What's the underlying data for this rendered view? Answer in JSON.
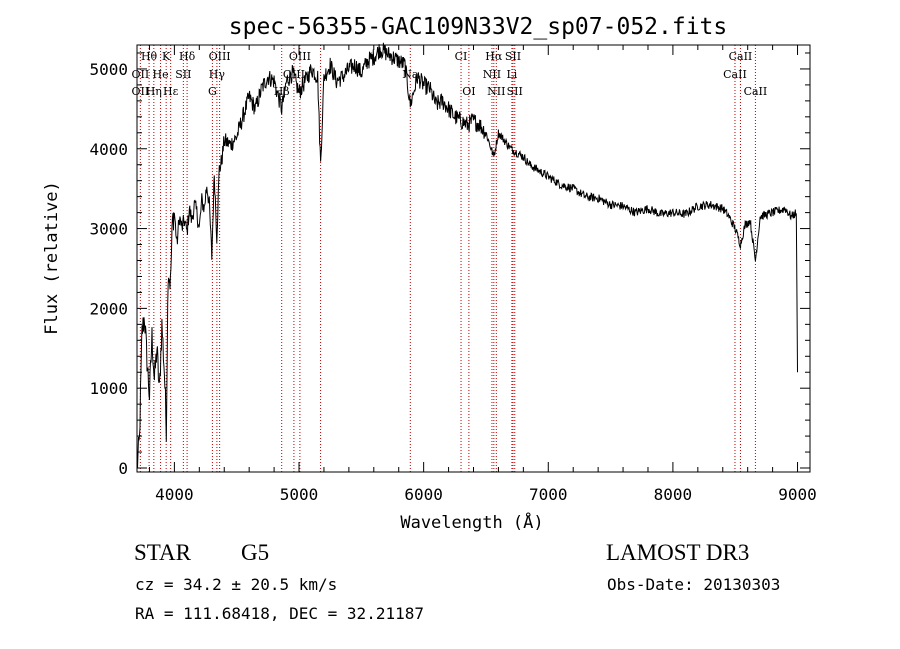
{
  "chart_data": {
    "type": "line",
    "title": "spec-56355-GAC109N33V2_sp07-052.fits",
    "xlabel": "Wavelength (Å)",
    "ylabel": "Flux (relative)",
    "xlim": [
      3700,
      9100
    ],
    "ylim": [
      -50,
      5300
    ],
    "x_ticks": [
      4000,
      5000,
      6000,
      7000,
      8000,
      9000
    ],
    "y_ticks": [
      0,
      1000,
      2000,
      3000,
      4000,
      5000
    ],
    "series": [
      {
        "name": "flux",
        "x": [
          3700,
          3720,
          3740,
          3760,
          3780,
          3800,
          3820,
          3840,
          3860,
          3880,
          3900,
          3920,
          3935,
          3950,
          3968,
          3985,
          4000,
          4020,
          4040,
          4060,
          4080,
          4101,
          4120,
          4140,
          4160,
          4180,
          4200,
          4220,
          4240,
          4260,
          4280,
          4300,
          4320,
          4340,
          4360,
          4380,
          4400,
          4450,
          4500,
          4550,
          4600,
          4650,
          4700,
          4750,
          4800,
          4861,
          4900,
          4950,
          5000,
          5050,
          5100,
          5150,
          5173,
          5200,
          5250,
          5300,
          5350,
          5400,
          5450,
          5500,
          5550,
          5600,
          5650,
          5700,
          5750,
          5800,
          5850,
          5893,
          5950,
          6000,
          6050,
          6100,
          6150,
          6200,
          6250,
          6300,
          6350,
          6400,
          6450,
          6500,
          6563,
          6600,
          6650,
          6700,
          6750,
          6800,
          6850,
          6900,
          6950,
          7000,
          7100,
          7200,
          7300,
          7400,
          7500,
          7600,
          7700,
          7800,
          7900,
          8000,
          8100,
          8200,
          8300,
          8400,
          8450,
          8500,
          8542,
          8580,
          8620,
          8662,
          8700,
          8800,
          8900,
          8950,
          8990,
          9000
        ],
        "values": [
          0,
          350,
          1700,
          1900,
          1350,
          900,
          1650,
          1100,
          1500,
          950,
          1800,
          1200,
          500,
          2500,
          2300,
          3100,
          3200,
          2800,
          3150,
          3000,
          3100,
          2950,
          3250,
          3100,
          3300,
          3200,
          3000,
          3350,
          3250,
          3550,
          3300,
          2650,
          3700,
          2900,
          3750,
          3850,
          4100,
          4050,
          4150,
          4400,
          4650,
          4500,
          4750,
          4900,
          4850,
          4500,
          4850,
          4950,
          4700,
          4850,
          5000,
          4900,
          3800,
          4900,
          5050,
          4850,
          4900,
          5000,
          5050,
          4950,
          5100,
          5150,
          5250,
          5200,
          5150,
          5100,
          5050,
          4550,
          4900,
          4800,
          4750,
          4550,
          4600,
          4500,
          4400,
          4350,
          4300,
          4350,
          4300,
          4200,
          3900,
          4200,
          4100,
          4000,
          3950,
          3900,
          3800,
          3750,
          3700,
          3650,
          3550,
          3500,
          3400,
          3380,
          3300,
          3280,
          3200,
          3250,
          3180,
          3200,
          3180,
          3280,
          3300,
          3250,
          3150,
          3000,
          2800,
          3050,
          3100,
          2600,
          3150,
          3200,
          3250,
          3150,
          3200,
          1200
        ]
      }
    ],
    "lines": [
      {
        "label": "Hθ",
        "wavelength": 3797,
        "row": 0
      },
      {
        "label": "K",
        "wavelength": 3934,
        "row": 0
      },
      {
        "label": "Hδ",
        "wavelength": 4102,
        "row": 0
      },
      {
        "label": "OIII",
        "wavelength": 4363,
        "row": 0
      },
      {
        "label": "OIII",
        "wavelength": 5007,
        "row": 0
      },
      {
        "label": "CI",
        "wavelength": 6300,
        "row": 0
      },
      {
        "label": "Hα",
        "wavelength": 6563,
        "row": 0
      },
      {
        "label": "SII",
        "wavelength": 6717,
        "row": 0
      },
      {
        "label": "CaII",
        "wavelength": 8542,
        "row": 0
      },
      {
        "label": "OII",
        "wavelength": 3727,
        "row": 1
      },
      {
        "label": "He",
        "wavelength": 3889,
        "row": 1
      },
      {
        "label": "SII",
        "wavelength": 4072,
        "row": 1
      },
      {
        "label": "Hγ",
        "wavelength": 4341,
        "row": 1
      },
      {
        "label": "OIII",
        "wavelength": 4959,
        "row": 1
      },
      {
        "label": "Na",
        "wavelength": 5893,
        "row": 1
      },
      {
        "label": "NII",
        "wavelength": 6548,
        "row": 1
      },
      {
        "label": "Li",
        "wavelength": 6708,
        "row": 1
      },
      {
        "label": "CaII",
        "wavelength": 8498,
        "row": 1
      },
      {
        "label": "OII",
        "wavelength": 3727,
        "row": 2
      },
      {
        "label": "Hε",
        "wavelength": 3970,
        "row": 2
      },
      {
        "label": "Hη",
        "wavelength": 3835,
        "row": 2
      },
      {
        "label": "G",
        "wavelength": 4305,
        "row": 2
      },
      {
        "label": "Hβ",
        "wavelength": 4861,
        "row": 2
      },
      {
        "label": "OI",
        "wavelength": 6363,
        "row": 2
      },
      {
        "label": "NII",
        "wavelength": 6583,
        "row": 2
      },
      {
        "label": "SII",
        "wavelength": 6731,
        "row": 2
      },
      {
        "label": "CaII",
        "wavelength": 8662,
        "row": 2
      }
    ],
    "marker_wavelengths": [
      3727,
      3797,
      3835,
      3889,
      3934,
      3970,
      4072,
      4102,
      4305,
      4341,
      4363,
      4861,
      4959,
      5007,
      5173,
      5893,
      6300,
      6363,
      6548,
      6563,
      6583,
      6708,
      6717,
      6731,
      8498,
      8542,
      8662
    ]
  },
  "info": {
    "object_class": "STAR",
    "subclass": "G5",
    "survey": "LAMOST DR3",
    "cz": "cz = 34.2 ± 20.5 km/s",
    "obs_date": "Obs-Date: 20130303",
    "coords": "RA = 111.68418, DEC =  32.21187"
  }
}
